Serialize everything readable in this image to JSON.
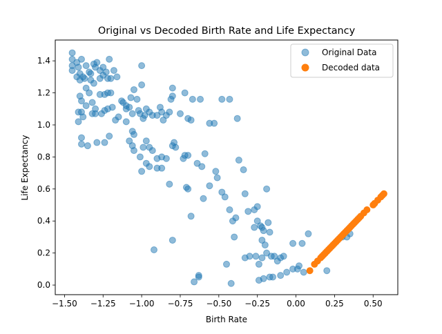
{
  "chart_data": {
    "type": "scatter",
    "title": "Original vs Decoded Birth Rate and Life Expectancy",
    "xlabel": "Birth Rate",
    "ylabel": "Life Expectancy",
    "xlim": [
      -1.56,
      0.66
    ],
    "ylim": [
      -0.06,
      1.53
    ],
    "xticks": [
      -1.5,
      -1.25,
      -1.0,
      -0.75,
      -0.5,
      -0.25,
      0.0,
      0.25,
      0.5
    ],
    "xtick_labels": [
      "−1.50",
      "−1.25",
      "−1.00",
      "−0.75",
      "−0.50",
      "−0.25",
      "0.00",
      "0.25",
      "0.50"
    ],
    "yticks": [
      0.0,
      0.2,
      0.4,
      0.6,
      0.8,
      1.0,
      1.2,
      1.4
    ],
    "ytick_labels": [
      "0.0",
      "0.2",
      "0.4",
      "0.6",
      "0.8",
      "1.0",
      "1.2",
      "1.4"
    ],
    "grid": false,
    "legend_position": "top-right",
    "series": [
      {
        "name": "Original Data",
        "color": "#1f77b4",
        "opacity": 0.5,
        "points": [
          [
            -1.45,
            1.45
          ],
          [
            -1.45,
            1.41
          ],
          [
            -1.45,
            1.37
          ],
          [
            -1.45,
            1.34
          ],
          [
            -1.42,
            1.39
          ],
          [
            -1.41,
            1.36
          ],
          [
            -1.4,
            1.32
          ],
          [
            -1.39,
            1.41
          ],
          [
            -1.38,
            1.3
          ],
          [
            -1.36,
            1.37
          ],
          [
            -1.34,
            1.33
          ],
          [
            -1.33,
            1.32
          ],
          [
            -1.31,
            1.38
          ],
          [
            -1.29,
            1.39
          ],
          [
            -1.3,
            1.36
          ],
          [
            -1.27,
            1.34
          ],
          [
            -1.25,
            1.36
          ],
          [
            -1.23,
            1.33
          ],
          [
            -1.21,
            1.41
          ],
          [
            -1.18,
            1.34
          ],
          [
            -1.16,
            1.3
          ],
          [
            -1.42,
            1.3
          ],
          [
            -1.4,
            1.28
          ],
          [
            -1.37,
            1.29
          ],
          [
            -1.33,
            1.28
          ],
          [
            -1.31,
            1.26
          ],
          [
            -1.27,
            1.29
          ],
          [
            -1.25,
            1.31
          ],
          [
            -1.22,
            1.29
          ],
          [
            -1.2,
            1.29
          ],
          [
            -1.36,
            1.23
          ],
          [
            -1.34,
            1.2
          ],
          [
            -1.4,
            1.18
          ],
          [
            -1.39,
            1.15
          ],
          [
            -1.36,
            1.12
          ],
          [
            -1.32,
            1.14
          ],
          [
            -1.3,
            1.1
          ],
          [
            -1.27,
            1.19
          ],
          [
            -1.24,
            1.19
          ],
          [
            -1.22,
            1.2
          ],
          [
            -1.2,
            1.2
          ],
          [
            -1.41,
            1.08
          ],
          [
            -1.39,
            1.08
          ],
          [
            -1.38,
            1.05
          ],
          [
            -1.32,
            1.07
          ],
          [
            -1.3,
            1.07
          ],
          [
            -1.26,
            1.07
          ],
          [
            -1.24,
            1.09
          ],
          [
            -1.22,
            1.1
          ],
          [
            -1.19,
            1.11
          ],
          [
            -1.41,
            1.02
          ],
          [
            -1.39,
            0.92
          ],
          [
            -1.39,
            0.88
          ],
          [
            -1.35,
            0.87
          ],
          [
            -1.29,
            0.89
          ],
          [
            -1.24,
            0.89
          ],
          [
            -1.21,
            0.93
          ],
          [
            -1.17,
            1.03
          ],
          [
            -1.15,
            1.05
          ],
          [
            -1.13,
            1.15
          ],
          [
            -1.12,
            1.14
          ],
          [
            -1.1,
            1.12
          ],
          [
            -1.1,
            1.1
          ],
          [
            -1.08,
            1.11
          ],
          [
            -1.07,
            1.17
          ],
          [
            -1.06,
            1.07
          ],
          [
            -1.05,
            1.22
          ],
          [
            -1.03,
            1.16
          ],
          [
            -1.0,
            1.37
          ],
          [
            -1.0,
            1.25
          ],
          [
            -1.1,
            1.02
          ],
          [
            -1.06,
            0.96
          ],
          [
            -1.05,
            0.94
          ],
          [
            -1.02,
            1.09
          ],
          [
            -1.01,
            1.07
          ],
          [
            -0.99,
            1.04
          ],
          [
            -0.98,
            1.06
          ],
          [
            -0.97,
            1.1
          ],
          [
            -0.95,
            1.08
          ],
          [
            -0.93,
            1.06
          ],
          [
            -0.9,
            1.06
          ],
          [
            -0.88,
            1.11
          ],
          [
            -0.87,
            1.08
          ],
          [
            -0.86,
            1.03
          ],
          [
            -0.84,
            1.06
          ],
          [
            -0.82,
            1.08
          ],
          [
            -0.81,
            1.16
          ],
          [
            -0.8,
            1.18
          ],
          [
            -0.8,
            1.23
          ],
          [
            -0.75,
            1.07
          ],
          [
            -0.72,
            1.2
          ],
          [
            -0.7,
            1.04
          ],
          [
            -0.68,
            1.03
          ],
          [
            -0.67,
            1.16
          ],
          [
            -0.62,
            1.16
          ],
          [
            -0.56,
            1.01
          ],
          [
            -0.53,
            1.01
          ],
          [
            -0.48,
            1.16
          ],
          [
            -0.43,
            1.16
          ],
          [
            -0.38,
            1.04
          ],
          [
            -1.08,
            0.9
          ],
          [
            -1.06,
            0.87
          ],
          [
            -1.05,
            0.84
          ],
          [
            -1.01,
            0.8
          ],
          [
            -0.99,
            0.86
          ],
          [
            -0.97,
            0.9
          ],
          [
            -0.95,
            0.86
          ],
          [
            -0.93,
            0.84
          ],
          [
            -0.9,
            0.79
          ],
          [
            -0.87,
            0.8
          ],
          [
            -0.84,
            0.79
          ],
          [
            -0.8,
            0.87
          ],
          [
            -0.79,
            0.89
          ],
          [
            -0.78,
            0.86
          ],
          [
            -0.73,
            0.79
          ],
          [
            -0.72,
            0.81
          ],
          [
            -0.7,
            0.81
          ],
          [
            -0.64,
            0.76
          ],
          [
            -0.61,
            0.74
          ],
          [
            -0.59,
            0.82
          ],
          [
            -1.0,
            0.71
          ],
          [
            -0.97,
            0.76
          ],
          [
            -0.95,
            0.74
          ],
          [
            -0.9,
            0.73
          ],
          [
            -0.87,
            0.73
          ],
          [
            -0.82,
            0.63
          ],
          [
            -0.71,
            0.61
          ],
          [
            -0.7,
            0.6
          ],
          [
            -0.68,
            0.43
          ],
          [
            -0.6,
            0.54
          ],
          [
            -0.56,
            0.62
          ],
          [
            -0.52,
            0.71
          ],
          [
            -0.51,
            0.67
          ],
          [
            -0.48,
            0.58
          ],
          [
            -0.46,
            0.55
          ],
          [
            -0.43,
            0.47
          ],
          [
            -0.41,
            0.4
          ],
          [
            -0.39,
            0.42
          ],
          [
            -0.37,
            0.78
          ],
          [
            -0.34,
            0.72
          ],
          [
            -0.33,
            0.57
          ],
          [
            -0.31,
            0.46
          ],
          [
            -0.27,
            0.47
          ],
          [
            -0.25,
            0.49
          ],
          [
            -0.23,
            0.37
          ],
          [
            -0.22,
            0.36
          ],
          [
            -0.21,
            0.34
          ],
          [
            -0.18,
            0.39
          ],
          [
            -0.17,
            0.33
          ],
          [
            -0.19,
            0.6
          ],
          [
            -0.25,
            0.4
          ],
          [
            -0.27,
            0.36
          ],
          [
            -0.22,
            0.28
          ],
          [
            -0.2,
            0.25
          ],
          [
            -0.19,
            0.2
          ],
          [
            -0.16,
            0.18
          ],
          [
            -0.14,
            0.18
          ],
          [
            -0.12,
            0.15
          ],
          [
            -0.1,
            0.17
          ],
          [
            -0.08,
            0.18
          ],
          [
            -0.33,
            0.17
          ],
          [
            -0.3,
            0.18
          ],
          [
            -0.26,
            0.18
          ],
          [
            -0.24,
            0.13
          ],
          [
            -0.22,
            0.17
          ],
          [
            -0.17,
            0.05
          ],
          [
            -0.15,
            0.05
          ],
          [
            -0.1,
            0.06
          ],
          [
            -0.06,
            0.08
          ],
          [
            -0.02,
            0.1
          ],
          [
            0.02,
            0.12
          ],
          [
            0.05,
            0.08
          ],
          [
            0.04,
            0.26
          ],
          [
            0.08,
            0.32
          ],
          [
            -0.21,
            0.04
          ],
          [
            -0.24,
            0.03
          ],
          [
            -0.42,
            0.01
          ],
          [
            -0.45,
            0.13
          ],
          [
            -0.4,
            0.3
          ],
          [
            -0.63,
            0.06
          ],
          [
            -0.63,
            0.05
          ],
          [
            -0.66,
            0.02
          ],
          [
            -0.8,
            0.28
          ],
          [
            -0.92,
            0.22
          ],
          [
            -0.02,
            0.26
          ],
          [
            0.01,
            0.1
          ],
          [
            0.2,
            0.09
          ],
          [
            0.3,
            0.3
          ],
          [
            0.33,
            0.3
          ],
          [
            0.35,
            0.32
          ]
        ]
      },
      {
        "name": "Decoded data",
        "color": "#ff7f0e",
        "opacity": 1.0,
        "points": [
          [
            0.09,
            0.09
          ],
          [
            0.12,
            0.13
          ],
          [
            0.14,
            0.15
          ],
          [
            0.16,
            0.17
          ],
          [
            0.17,
            0.18
          ],
          [
            0.18,
            0.19
          ],
          [
            0.19,
            0.2
          ],
          [
            0.2,
            0.21
          ],
          [
            0.21,
            0.22
          ],
          [
            0.22,
            0.23
          ],
          [
            0.23,
            0.24
          ],
          [
            0.24,
            0.25
          ],
          [
            0.25,
            0.26
          ],
          [
            0.26,
            0.27
          ],
          [
            0.27,
            0.28
          ],
          [
            0.28,
            0.29
          ],
          [
            0.29,
            0.3
          ],
          [
            0.3,
            0.31
          ],
          [
            0.31,
            0.32
          ],
          [
            0.32,
            0.33
          ],
          [
            0.33,
            0.34
          ],
          [
            0.34,
            0.35
          ],
          [
            0.35,
            0.36
          ],
          [
            0.36,
            0.37
          ],
          [
            0.37,
            0.38
          ],
          [
            0.38,
            0.39
          ],
          [
            0.39,
            0.4
          ],
          [
            0.4,
            0.41
          ],
          [
            0.41,
            0.42
          ],
          [
            0.42,
            0.43
          ],
          [
            0.44,
            0.45
          ],
          [
            0.46,
            0.47
          ],
          [
            0.5,
            0.5
          ],
          [
            0.51,
            0.51
          ],
          [
            0.53,
            0.53
          ],
          [
            0.55,
            0.55
          ],
          [
            0.56,
            0.56
          ],
          [
            0.57,
            0.57
          ]
        ]
      }
    ]
  }
}
